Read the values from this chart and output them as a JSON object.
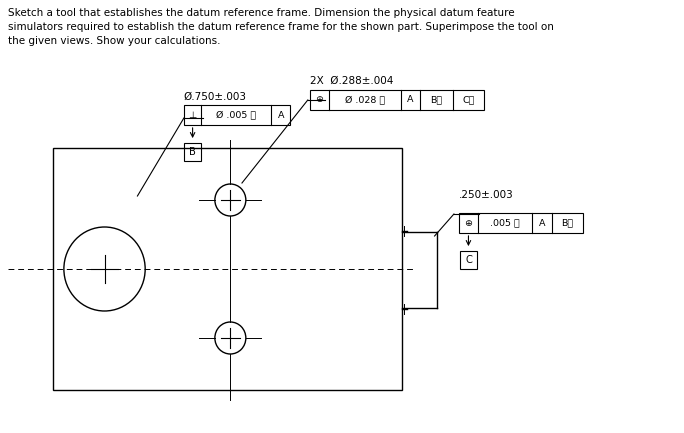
{
  "title_text": "Sketch a tool that establishes the datum reference frame. Dimension the physical datum feature\nsimulators required to establish the datum reference frame for the shown part. Superimpose the tool on\nthe given views. Show your calculations.",
  "bg_color": "#ffffff",
  "line_color": "#000000",
  "fcf_B_dim": "Ø.750±.003",
  "fcf_B_cells": [
    "⊥",
    "Ø .005 Ⓜ",
    "A"
  ],
  "fcf_B_datum": "B",
  "fcf_holes_header": "2X  Ø.288±.004",
  "fcf_holes_cells": [
    "⊕",
    "Ø .028 Ⓜ",
    "A",
    "BⓂ",
    "CⓂ"
  ],
  "fcf_C_dim": ".250±.003",
  "fcf_C_cells": [
    "⊕",
    ".005 Ⓜ",
    "A",
    "BⓂ"
  ],
  "fcf_C_datum": "C"
}
